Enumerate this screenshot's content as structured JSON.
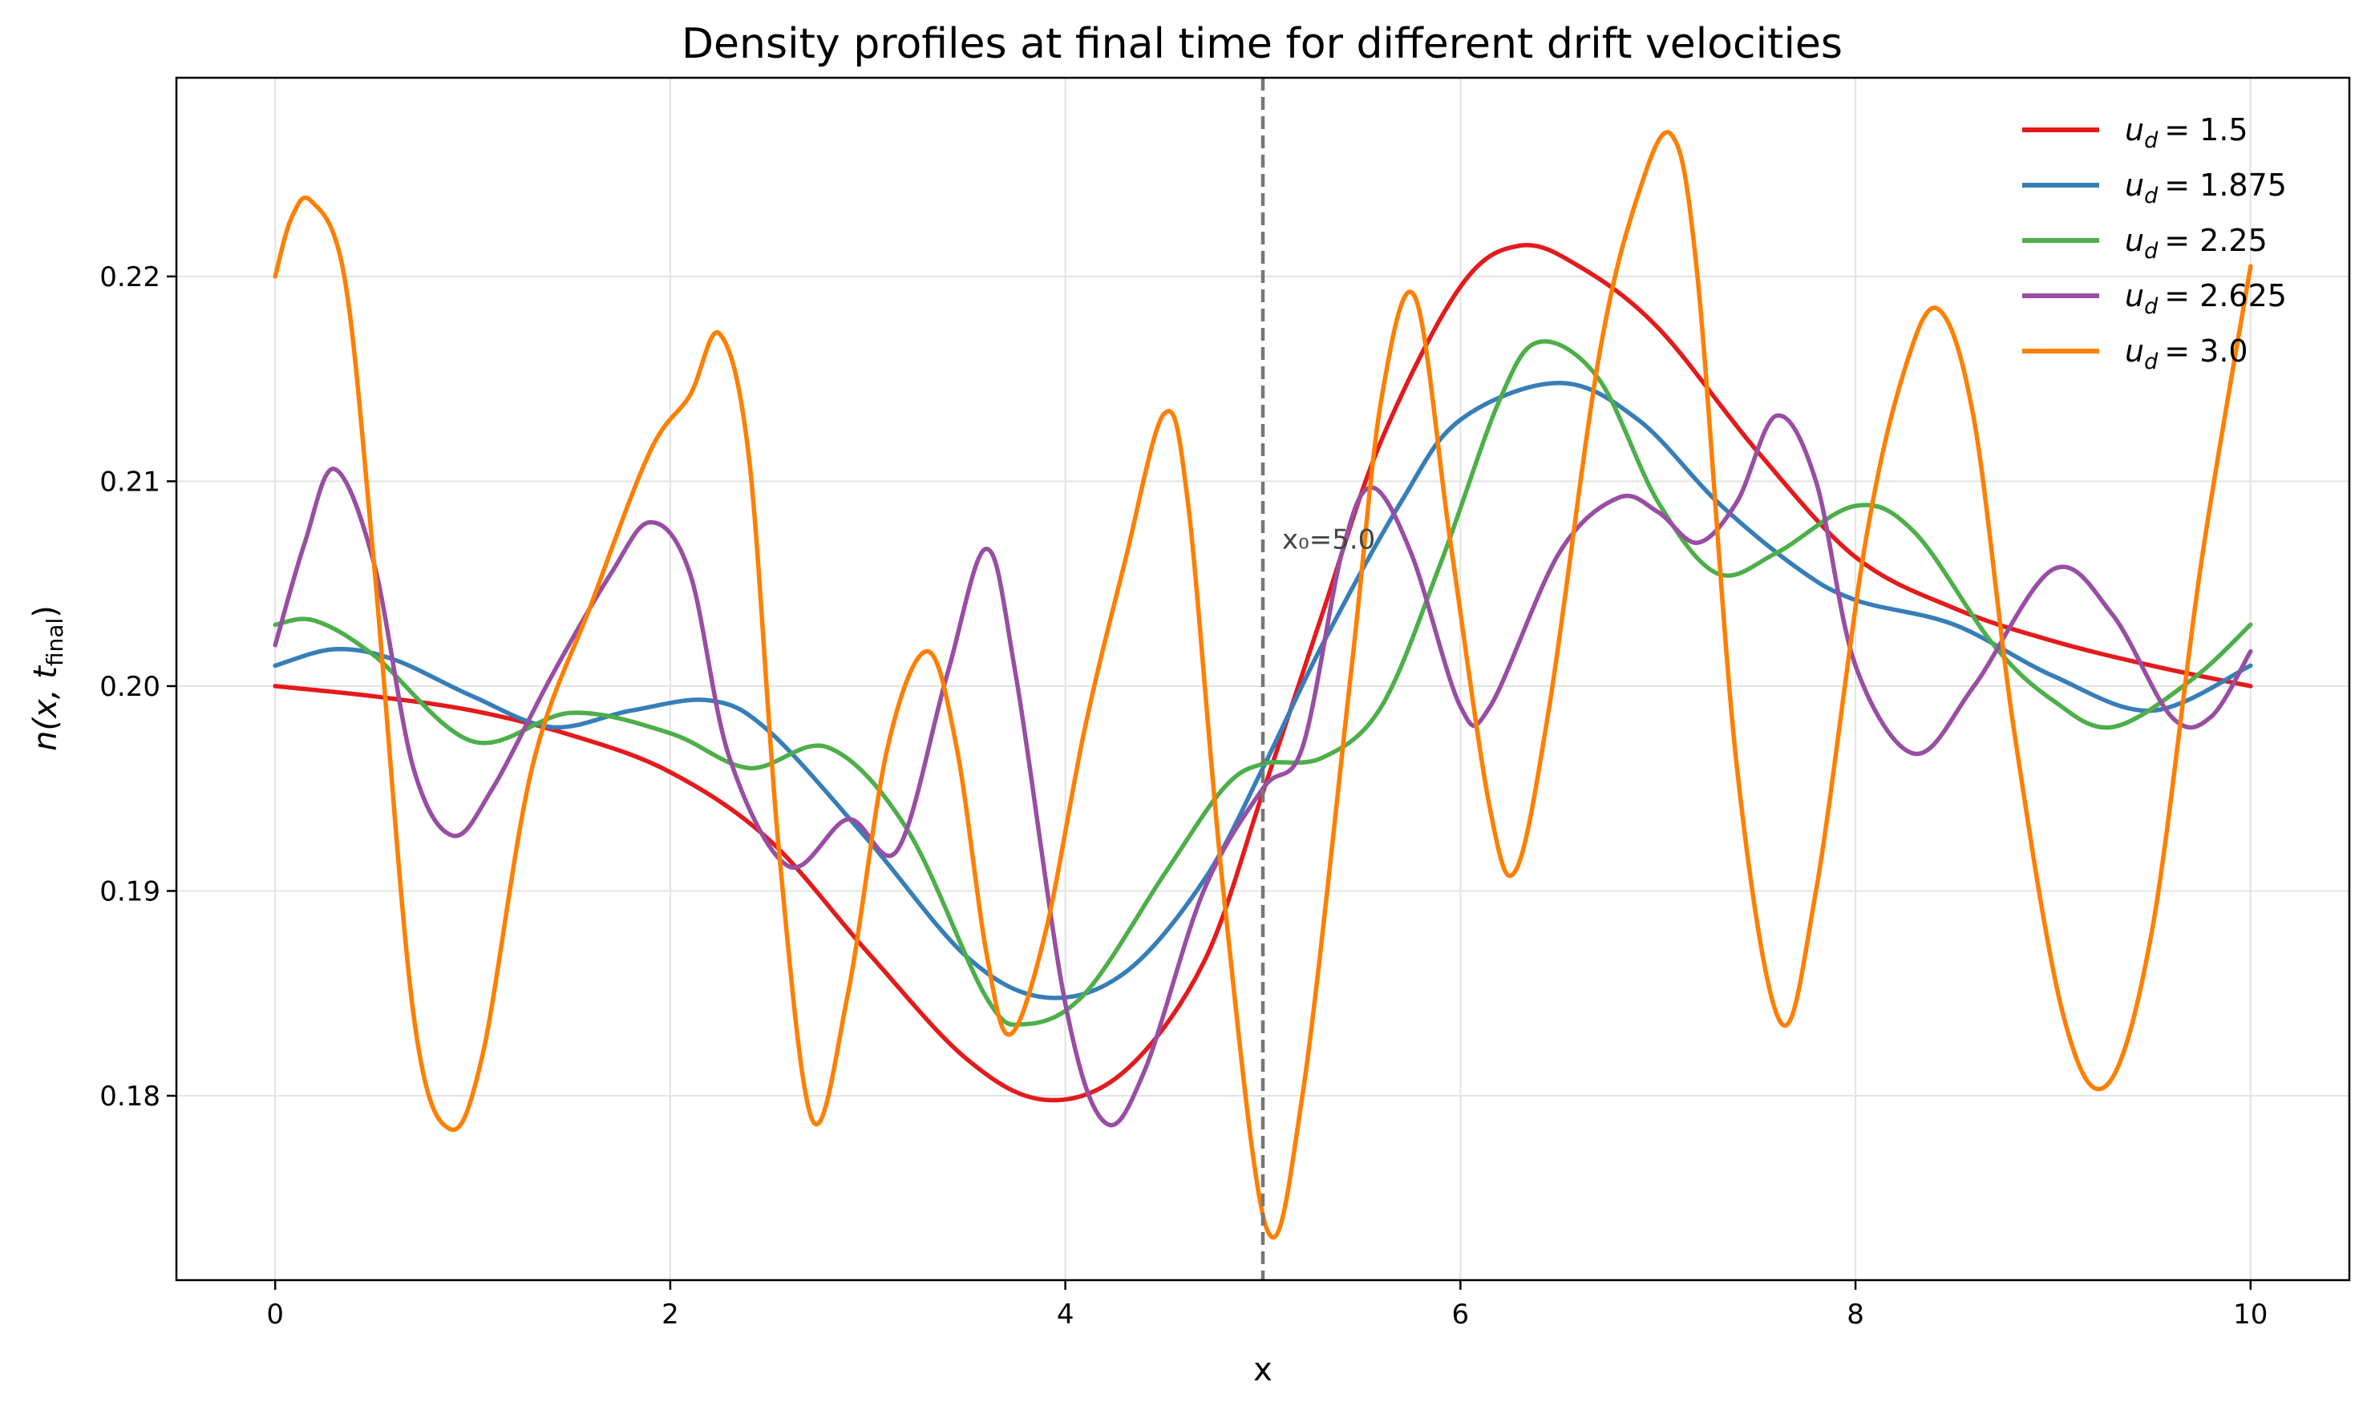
{
  "chart_data": {
    "type": "line",
    "title": "Density profiles at final time for different drift velocities",
    "xlabel": "x",
    "ylabel_main": "n(x, t",
    "ylabel_sub": "final",
    "ylabel_close": ")",
    "xlim": [
      -0.5,
      10.5
    ],
    "ylim": [
      0.171,
      0.2297
    ],
    "xticks": [
      0,
      2,
      4,
      6,
      8,
      10
    ],
    "xtick_labels": [
      "0",
      "2",
      "4",
      "6",
      "8",
      "10"
    ],
    "yticks": [
      0.18,
      0.19,
      0.2,
      0.21,
      0.22
    ],
    "ytick_labels": [
      "0.18",
      "0.19",
      "0.20",
      "0.21",
      "0.22"
    ],
    "grid": true,
    "legend_position": "top-right",
    "vline": {
      "x": 5.0,
      "label": "x₀=5.0",
      "color": "#777777"
    },
    "series": [
      {
        "name": "u_d = 1.5",
        "legend_sub": "d",
        "legend_value": "= 1.5",
        "color": "#e41a1c",
        "points": [
          [
            0,
            0.2
          ],
          [
            0.5,
            0.1995
          ],
          [
            1.0,
            0.1988
          ],
          [
            1.5,
            0.1976
          ],
          [
            2.0,
            0.1958
          ],
          [
            2.5,
            0.1925
          ],
          [
            3.0,
            0.187
          ],
          [
            3.5,
            0.1818
          ],
          [
            3.9,
            0.1798
          ],
          [
            4.3,
            0.1812
          ],
          [
            4.7,
            0.1865
          ],
          [
            5.0,
            0.1948
          ],
          [
            5.3,
            0.2035
          ],
          [
            5.6,
            0.212
          ],
          [
            6.0,
            0.2195
          ],
          [
            6.3,
            0.2215
          ],
          [
            6.6,
            0.2205
          ],
          [
            7.0,
            0.2175
          ],
          [
            7.5,
            0.2115
          ],
          [
            8.0,
            0.2063
          ],
          [
            8.5,
            0.2038
          ],
          [
            9.0,
            0.2022
          ],
          [
            9.5,
            0.201
          ],
          [
            10.0,
            0.2
          ]
        ]
      },
      {
        "name": "u_d = 1.875",
        "legend_sub": "d",
        "legend_value": "= 1.875",
        "color": "#377eb8",
        "points": [
          [
            0,
            0.201
          ],
          [
            0.3,
            0.2018
          ],
          [
            0.6,
            0.2013
          ],
          [
            1.0,
            0.1995
          ],
          [
            1.4,
            0.198
          ],
          [
            1.8,
            0.1988
          ],
          [
            2.2,
            0.1993
          ],
          [
            2.5,
            0.1978
          ],
          [
            3.0,
            0.1925
          ],
          [
            3.5,
            0.1868
          ],
          [
            3.9,
            0.1848
          ],
          [
            4.3,
            0.186
          ],
          [
            4.7,
            0.1905
          ],
          [
            5.0,
            0.196
          ],
          [
            5.3,
            0.202
          ],
          [
            5.7,
            0.209
          ],
          [
            6.0,
            0.213
          ],
          [
            6.5,
            0.2148
          ],
          [
            6.9,
            0.213
          ],
          [
            7.3,
            0.209
          ],
          [
            7.7,
            0.2058
          ],
          [
            8.0,
            0.2042
          ],
          [
            8.5,
            0.203
          ],
          [
            9.0,
            0.2005
          ],
          [
            9.5,
            0.1988
          ],
          [
            10.0,
            0.201
          ]
        ]
      },
      {
        "name": "u_d = 2.25",
        "legend_sub": "d",
        "legend_value": "= 2.25",
        "color": "#4daf4a",
        "points": [
          [
            0,
            0.203
          ],
          [
            0.2,
            0.2032
          ],
          [
            0.5,
            0.2015
          ],
          [
            1.0,
            0.1973
          ],
          [
            1.5,
            0.1987
          ],
          [
            2.0,
            0.1977
          ],
          [
            2.4,
            0.196
          ],
          [
            2.8,
            0.197
          ],
          [
            3.2,
            0.193
          ],
          [
            3.6,
            0.1848
          ],
          [
            3.8,
            0.1835
          ],
          [
            4.1,
            0.185
          ],
          [
            4.5,
            0.1908
          ],
          [
            4.8,
            0.195
          ],
          [
            5.0,
            0.1962
          ],
          [
            5.3,
            0.1965
          ],
          [
            5.6,
            0.199
          ],
          [
            5.9,
            0.206
          ],
          [
            6.2,
            0.214
          ],
          [
            6.4,
            0.2168
          ],
          [
            6.7,
            0.215
          ],
          [
            7.0,
            0.209
          ],
          [
            7.3,
            0.2055
          ],
          [
            7.6,
            0.2065
          ],
          [
            8.0,
            0.2088
          ],
          [
            8.3,
            0.2075
          ],
          [
            8.7,
            0.202
          ],
          [
            9.0,
            0.1993
          ],
          [
            9.3,
            0.198
          ],
          [
            9.7,
            0.2003
          ],
          [
            10.0,
            0.203
          ]
        ]
      },
      {
        "name": "u_d = 2.625",
        "legend_sub": "d",
        "legend_value": "= 2.625",
        "color": "#984ea3",
        "points": [
          [
            0,
            0.202
          ],
          [
            0.15,
            0.207
          ],
          [
            0.3,
            0.2106
          ],
          [
            0.5,
            0.206
          ],
          [
            0.7,
            0.196
          ],
          [
            0.9,
            0.1927
          ],
          [
            1.1,
            0.195
          ],
          [
            1.4,
            0.2005
          ],
          [
            1.7,
            0.2055
          ],
          [
            1.9,
            0.208
          ],
          [
            2.1,
            0.2055
          ],
          [
            2.3,
            0.1965
          ],
          [
            2.6,
            0.1912
          ],
          [
            2.9,
            0.1935
          ],
          [
            3.15,
            0.192
          ],
          [
            3.4,
            0.2005
          ],
          [
            3.6,
            0.2067
          ],
          [
            3.75,
            0.2005
          ],
          [
            4.0,
            0.1845
          ],
          [
            4.2,
            0.1787
          ],
          [
            4.4,
            0.1812
          ],
          [
            4.7,
            0.19
          ],
          [
            5.0,
            0.195
          ],
          [
            5.2,
            0.197
          ],
          [
            5.4,
            0.2065
          ],
          [
            5.55,
            0.2097
          ],
          [
            5.75,
            0.2065
          ],
          [
            6.0,
            0.199
          ],
          [
            6.15,
            0.199
          ],
          [
            6.5,
            0.2065
          ],
          [
            6.8,
            0.2092
          ],
          [
            7.0,
            0.2085
          ],
          [
            7.2,
            0.207
          ],
          [
            7.4,
            0.209
          ],
          [
            7.6,
            0.2132
          ],
          [
            7.8,
            0.21
          ],
          [
            8.0,
            0.201
          ],
          [
            8.3,
            0.1967
          ],
          [
            8.6,
            0.2
          ],
          [
            9.0,
            0.2057
          ],
          [
            9.3,
            0.2035
          ],
          [
            9.6,
            0.1985
          ],
          [
            9.8,
            0.1985
          ],
          [
            10.0,
            0.2017
          ]
        ]
      },
      {
        "name": "u_d = 3.0",
        "legend_sub": "d",
        "legend_value": "= 3.0",
        "color": "#ff7f00",
        "points": [
          [
            0,
            0.22
          ],
          [
            0.08,
            0.2228
          ],
          [
            0.18,
            0.2237
          ],
          [
            0.35,
            0.22
          ],
          [
            0.5,
            0.206
          ],
          [
            0.7,
            0.184
          ],
          [
            0.88,
            0.1784
          ],
          [
            1.05,
            0.182
          ],
          [
            1.3,
            0.196
          ],
          [
            1.6,
            0.204
          ],
          [
            1.9,
            0.2115
          ],
          [
            2.1,
            0.2142
          ],
          [
            2.25,
            0.2172
          ],
          [
            2.4,
            0.211
          ],
          [
            2.55,
            0.192
          ],
          [
            2.72,
            0.1788
          ],
          [
            2.9,
            0.185
          ],
          [
            3.1,
            0.197
          ],
          [
            3.3,
            0.2017
          ],
          [
            3.45,
            0.197
          ],
          [
            3.6,
            0.187
          ],
          [
            3.72,
            0.183
          ],
          [
            3.9,
            0.188
          ],
          [
            4.1,
            0.198
          ],
          [
            4.3,
            0.206
          ],
          [
            4.5,
            0.2133
          ],
          [
            4.62,
            0.209
          ],
          [
            4.8,
            0.19
          ],
          [
            5.02,
            0.1735
          ],
          [
            5.2,
            0.18
          ],
          [
            5.45,
            0.201
          ],
          [
            5.6,
            0.214
          ],
          [
            5.77,
            0.219
          ],
          [
            5.95,
            0.207
          ],
          [
            6.15,
            0.194
          ],
          [
            6.28,
            0.191
          ],
          [
            6.45,
            0.199
          ],
          [
            6.7,
            0.216
          ],
          [
            6.9,
            0.224
          ],
          [
            7.07,
            0.2269
          ],
          [
            7.2,
            0.22
          ],
          [
            7.4,
            0.196
          ],
          [
            7.62,
            0.1836
          ],
          [
            7.8,
            0.19
          ],
          [
            8.05,
            0.207
          ],
          [
            8.25,
            0.2155
          ],
          [
            8.42,
            0.2184
          ],
          [
            8.6,
            0.213
          ],
          [
            8.8,
            0.198
          ],
          [
            9.05,
            0.184
          ],
          [
            9.27,
            0.1805
          ],
          [
            9.5,
            0.188
          ],
          [
            9.75,
            0.206
          ],
          [
            10.0,
            0.2205
          ]
        ]
      }
    ]
  }
}
